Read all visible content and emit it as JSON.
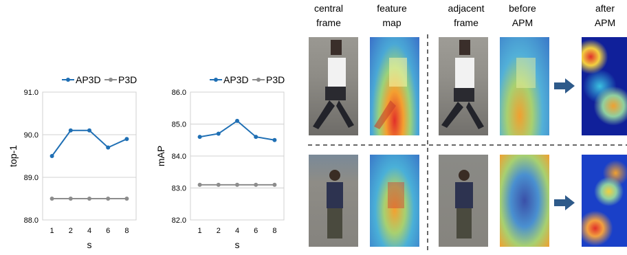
{
  "chart_data": [
    {
      "type": "line",
      "xlabel": "s",
      "ylabel": "top-1",
      "categories": [
        "1",
        "2",
        "4",
        "6",
        "8"
      ],
      "ylim": [
        88.0,
        91.0
      ],
      "yticks": [
        "88.0",
        "89.0",
        "90.0",
        "91.0"
      ],
      "grid": true,
      "legend_position": "top",
      "series": [
        {
          "name": "AP3D",
          "values": [
            89.5,
            90.1,
            90.1,
            89.7,
            89.9
          ],
          "color": "#1f6fb4"
        },
        {
          "name": "P3D",
          "values": [
            88.5,
            88.5,
            88.5,
            88.5,
            88.5
          ],
          "color": "#8c8c8c"
        }
      ]
    },
    {
      "type": "line",
      "xlabel": "s",
      "ylabel": "mAP",
      "categories": [
        "1",
        "2",
        "4",
        "6",
        "8"
      ],
      "ylim": [
        82.0,
        86.0
      ],
      "yticks": [
        "82.0",
        "83.0",
        "84.0",
        "85.0",
        "86.0"
      ],
      "grid": true,
      "legend_position": "top",
      "series": [
        {
          "name": "AP3D",
          "values": [
            84.6,
            84.7,
            85.1,
            84.6,
            84.5
          ],
          "color": "#1f6fb4"
        },
        {
          "name": "P3D",
          "values": [
            83.1,
            83.1,
            83.1,
            83.1,
            83.1
          ],
          "color": "#8c8c8c"
        }
      ]
    }
  ],
  "figure": {
    "columns": [
      "central\nframe",
      "feature\nmap",
      "adjacent\nframe",
      "before\nAPM",
      "after\nAPM"
    ],
    "colors": {
      "arrow": "#2e5a8a",
      "divider": "#333333"
    }
  }
}
